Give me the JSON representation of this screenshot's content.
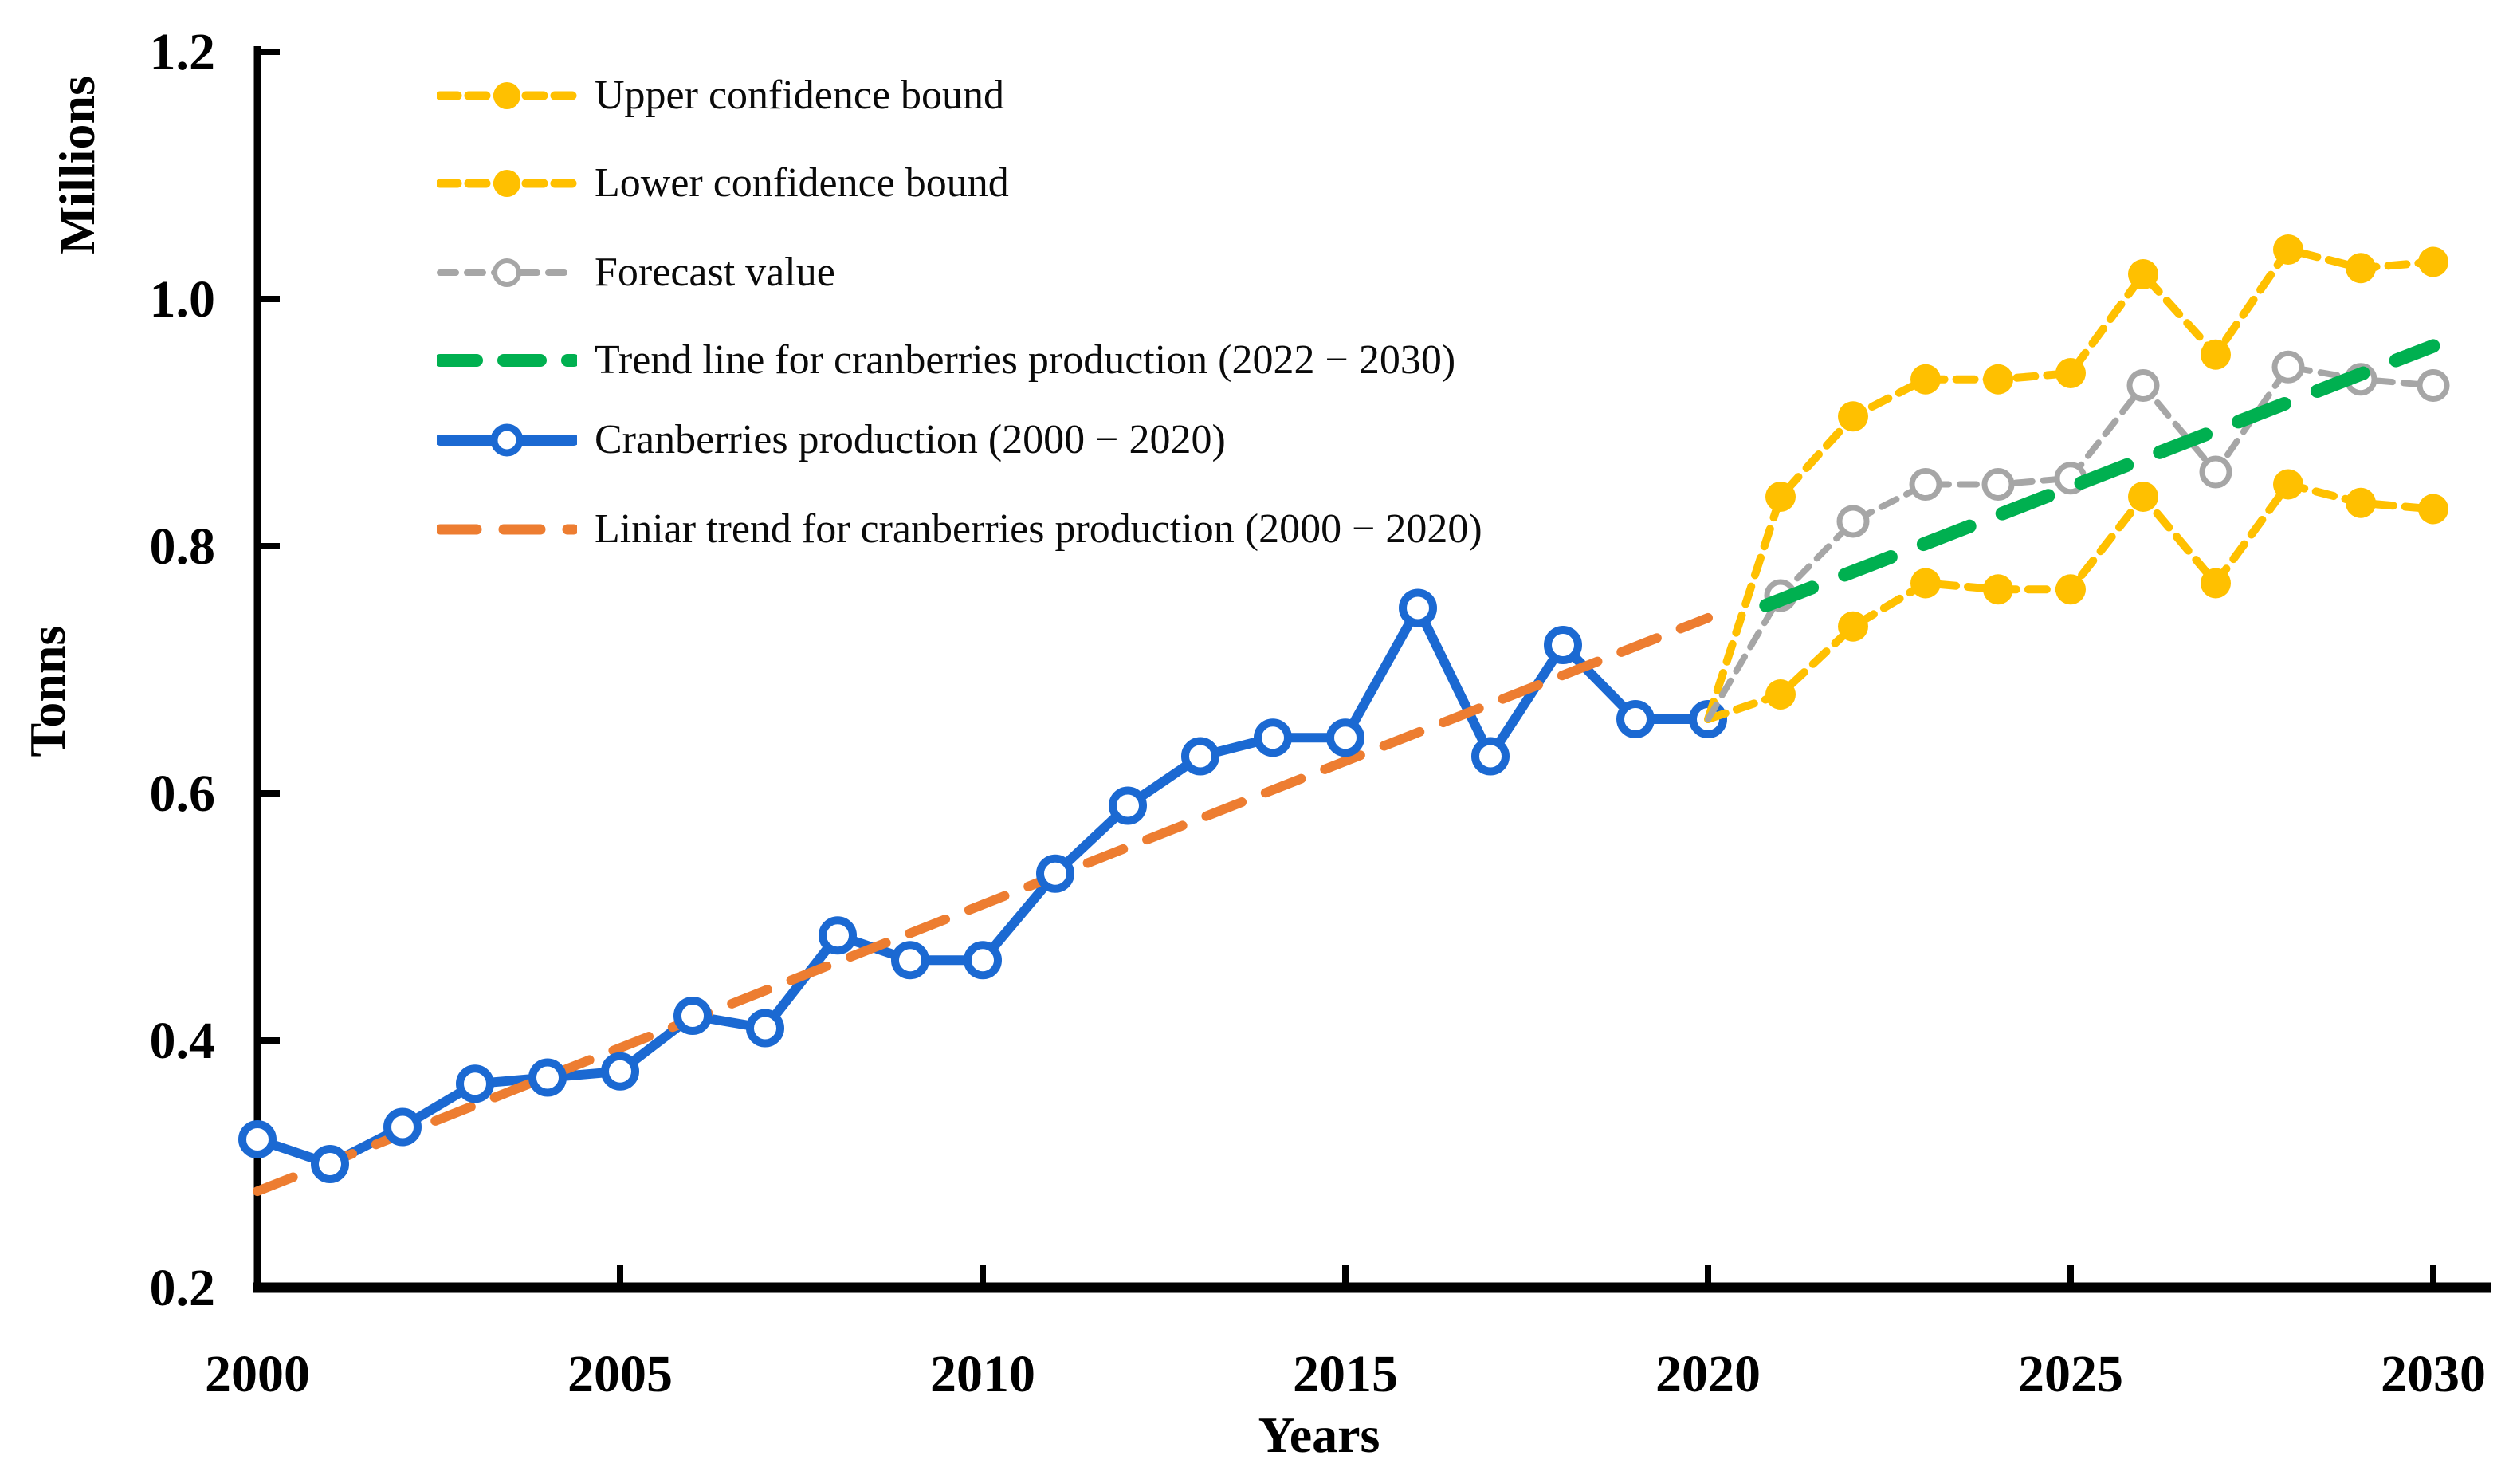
{
  "figure": {
    "background": "#FFFFFF",
    "text_color": "#000000"
  },
  "chart_data": {
    "type": "line",
    "xlabel": "Years",
    "ylabel": "Tonns",
    "ylabel_secondary": "Millions",
    "xlim": [
      2000,
      2030
    ],
    "ylim": [
      0.2,
      1.2
    ],
    "x_ticks": [
      2000,
      2005,
      2010,
      2015,
      2020,
      2025,
      2030
    ],
    "y_ticks": [
      "0.2",
      "0.4",
      "0.6",
      "0.8",
      "1.0",
      "1.2"
    ],
    "grid": false,
    "legend_position": "top-left",
    "series": [
      {
        "name": "Upper confidence bound",
        "color": "#FFC000",
        "line_style": "dashed",
        "marker": "filled-circle",
        "markers_start_x": 2021,
        "x": [
          2020,
          2021,
          2022,
          2023,
          2024,
          2025,
          2026,
          2027,
          2028,
          2029,
          2030
        ],
        "values": [
          0.66,
          0.84,
          0.905,
          0.935,
          0.935,
          0.94,
          1.02,
          0.955,
          1.04,
          1.025,
          1.03
        ]
      },
      {
        "name": "Lower confidence bound",
        "color": "#FFC000",
        "line_style": "dashed",
        "marker": "filled-circle",
        "markers_start_x": 2021,
        "x": [
          2020,
          2021,
          2022,
          2023,
          2024,
          2025,
          2026,
          2027,
          2028,
          2029,
          2030
        ],
        "values": [
          0.66,
          0.68,
          0.735,
          0.77,
          0.765,
          0.765,
          0.84,
          0.77,
          0.85,
          0.835,
          0.83
        ]
      },
      {
        "name": "Forecast value",
        "color": "#A6A6A6",
        "line_style": "thin-dashed",
        "marker": "open-circle",
        "markers_start_x": 2021,
        "x": [
          2020,
          2021,
          2022,
          2023,
          2024,
          2025,
          2026,
          2027,
          2028,
          2029,
          2030
        ],
        "values": [
          0.66,
          0.76,
          0.82,
          0.85,
          0.85,
          0.855,
          0.93,
          0.86,
          0.945,
          0.935,
          0.93
        ]
      },
      {
        "name": "Trend line for cranberries production (2022 − 2030)",
        "color": "#00B050",
        "line_style": "bold-dashed",
        "marker": "none",
        "x": [
          2020.8,
          2030
        ],
        "values": [
          0.752,
          0.962
        ]
      },
      {
        "name": "Cranberries production (2000 − 2020)",
        "color": "#1B69D2",
        "line_style": "solid",
        "marker": "open-circle-bold",
        "x": [
          2000,
          2001,
          2002,
          2003,
          2004,
          2005,
          2006,
          2007,
          2008,
          2009,
          2010,
          2011,
          2012,
          2013,
          2014,
          2015,
          2016,
          2017,
          2018,
          2019,
          2020
        ],
        "values": [
          0.32,
          0.3,
          0.33,
          0.365,
          0.37,
          0.375,
          0.42,
          0.41,
          0.485,
          0.465,
          0.465,
          0.535,
          0.59,
          0.63,
          0.645,
          0.645,
          0.75,
          0.63,
          0.72,
          0.66,
          0.66
        ]
      },
      {
        "name": "Liniar trend for cranberries production (2000 − 2020)",
        "color": "#ED7D31",
        "line_style": "long-dashed",
        "marker": "none",
        "x": [
          2000,
          2020
        ],
        "values": [
          0.278,
          0.742
        ]
      }
    ]
  }
}
